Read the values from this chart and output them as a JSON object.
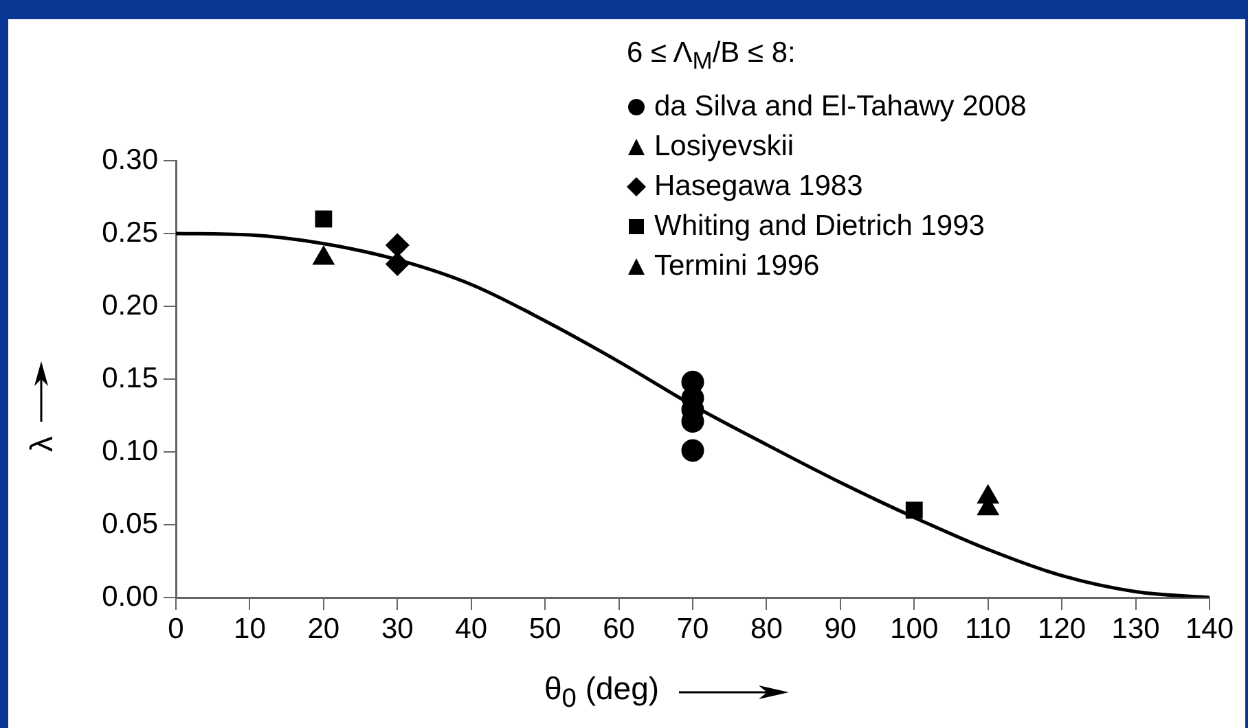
{
  "chart_data": {
    "type": "scatter",
    "xlabel": "θ$_{0}$ (deg)",
    "ylabel": "λ",
    "legend_title": "6 ≤ Λ$_{M}$/B ≤ 8:",
    "xlim": [
      0,
      140
    ],
    "xticks": [
      0,
      10,
      20,
      30,
      40,
      50,
      60,
      70,
      80,
      90,
      100,
      110,
      120,
      130,
      140
    ],
    "ylim": [
      0,
      0.3
    ],
    "yticks": [
      {
        "value": 0,
        "label": "0.00"
      },
      0.05,
      {
        "value": 0.1,
        "label": "0.10"
      },
      0.15,
      {
        "value": 0.2,
        "label": "0.20"
      },
      0.25,
      {
        "value": 0.3,
        "label": "0.30"
      }
    ],
    "grid": false,
    "legend": "top right",
    "series": [
      {
        "name": "da Silva and El-Tahawy 2008",
        "color": "#000000",
        "marker": "circle",
        "x": [
          70,
          70,
          70,
          70,
          70
        ],
        "values": [
          0.148,
          0.137,
          0.129,
          0.121,
          0.101
        ]
      },
      {
        "name": "Losiyevskii",
        "color": "#000000",
        "marker": "triangle",
        "x": [
          20
        ],
        "values": [
          0.233
        ]
      },
      {
        "name": "Hasegawa 1983",
        "color": "#000000",
        "marker": "diamond",
        "x": [
          30,
          30
        ],
        "values": [
          0.242,
          0.229
        ]
      },
      {
        "name": "Whiting and Dietrich 1993",
        "color": "#000000",
        "marker": "square",
        "x": [
          20,
          100
        ],
        "values": [
          0.26,
          0.06
        ]
      },
      {
        "name": "Termini 1996",
        "color": "#000000",
        "marker": "triangle",
        "x": [
          110,
          110
        ],
        "values": [
          0.069,
          0.061
        ]
      },
      {
        "type": "line",
        "color": "#000000",
        "marker": "none",
        "line_style": "solid",
        "x": [
          0,
          10,
          20,
          30,
          40,
          50,
          60,
          70,
          80,
          90,
          100,
          110,
          120,
          130,
          140
        ],
        "values": [
          0.25,
          0.249,
          0.243,
          0.232,
          0.215,
          0.19,
          0.162,
          0.132,
          0.105,
          0.079,
          0.055,
          0.033,
          0.015,
          0.004,
          0
        ]
      }
    ]
  }
}
